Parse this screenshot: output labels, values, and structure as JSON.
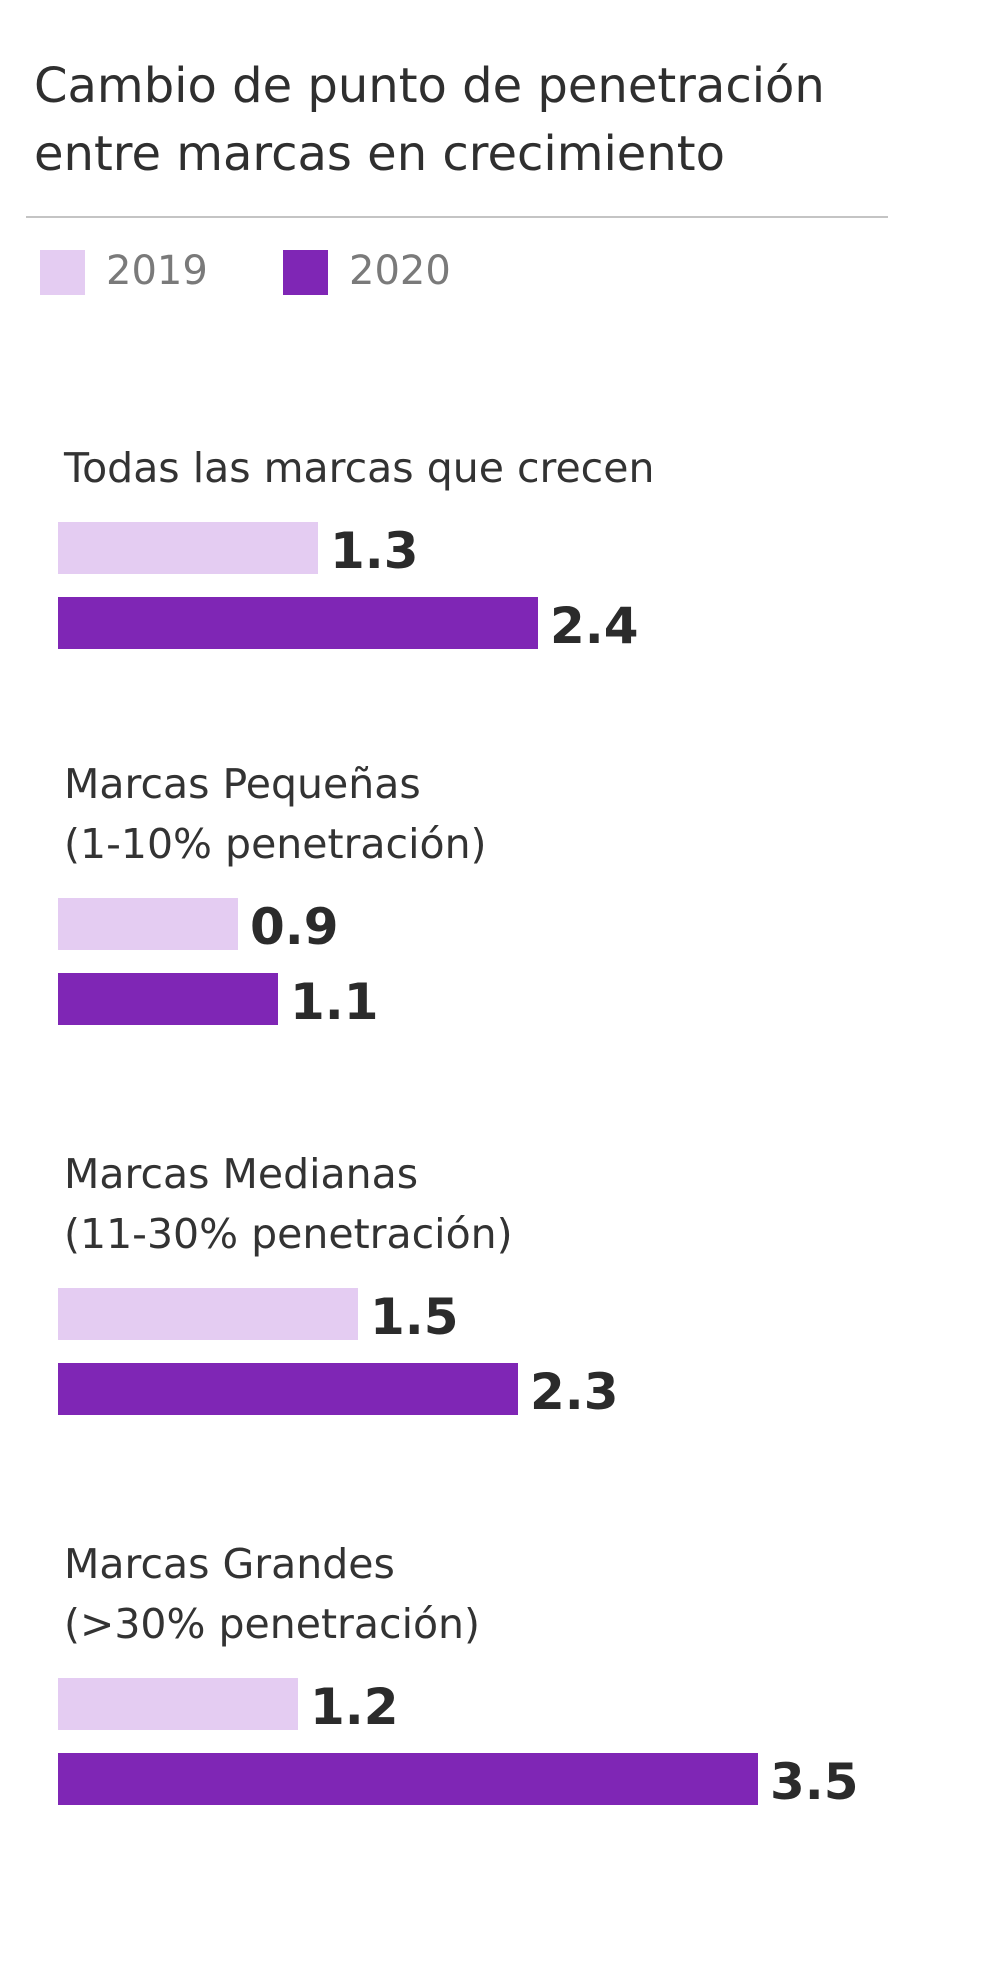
{
  "chart_data": {
    "type": "bar",
    "orientation": "horizontal",
    "title": "Cambio de punto de penetración entre marcas en crecimiento",
    "title_lines": [
      "Cambio de punto de penetración",
      "entre marcas en crecimiento"
    ],
    "categories": [
      "Todas las marcas que crecen",
      "Marcas Pequeñas (1-10% penetración)",
      "Marcas Medianas (11-30% penetración)",
      "Marcas Grandes (>30% penetración)"
    ],
    "category_lines": [
      [
        "Todas las marcas que crecen"
      ],
      [
        "Marcas Pequeñas",
        "(1-10% penetración)"
      ],
      [
        "Marcas Medianas",
        "(11-30% penetración)"
      ],
      [
        "Marcas Grandes",
        "(>30% penetración)"
      ]
    ],
    "series": [
      {
        "name": "2019",
        "color": "#e4ccf2",
        "values": [
          1.3,
          0.9,
          1.5,
          1.2
        ],
        "labels": [
          "1.3",
          "0.9",
          "1.5",
          "1.2"
        ]
      },
      {
        "name": "2020",
        "color": "#7f26b5",
        "values": [
          2.4,
          1.1,
          2.3,
          3.5
        ],
        "labels": [
          "2.4",
          "1.1",
          "2.3",
          "3.5"
        ]
      }
    ],
    "legend_position": "top-left",
    "grid": false,
    "xlim": [
      0,
      3.5
    ]
  }
}
